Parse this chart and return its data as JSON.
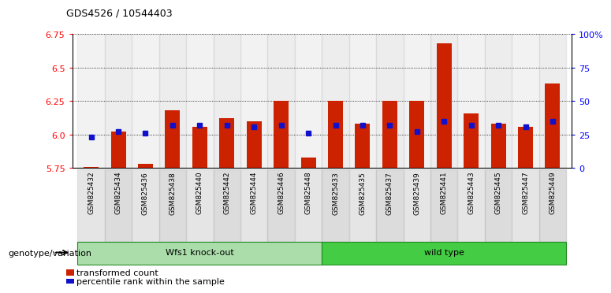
{
  "title": "GDS4526 / 10544403",
  "samples": [
    "GSM825432",
    "GSM825434",
    "GSM825436",
    "GSM825438",
    "GSM825440",
    "GSM825442",
    "GSM825444",
    "GSM825446",
    "GSM825448",
    "GSM825433",
    "GSM825435",
    "GSM825437",
    "GSM825439",
    "GSM825441",
    "GSM825443",
    "GSM825445",
    "GSM825447",
    "GSM825449"
  ],
  "bar_values": [
    5.76,
    6.02,
    5.78,
    6.18,
    6.06,
    6.12,
    6.1,
    6.25,
    5.83,
    6.25,
    6.08,
    6.25,
    6.25,
    6.68,
    6.16,
    6.08,
    6.06,
    6.38
  ],
  "percentile_values": [
    5.98,
    6.02,
    6.01,
    6.07,
    6.07,
    6.07,
    6.06,
    6.07,
    6.01,
    6.07,
    6.07,
    6.07,
    6.02,
    6.1,
    6.07,
    6.07,
    6.06,
    6.1
  ],
  "group_names": [
    "Wfs1 knock-out",
    "wild type"
  ],
  "group_split": 9,
  "ymin": 5.75,
  "ymax": 6.75,
  "yticks_left": [
    5.75,
    6.0,
    6.25,
    6.5,
    6.75
  ],
  "yticks_right_pct": [
    0,
    25,
    50,
    75,
    100
  ],
  "bar_color": "#cc2200",
  "dot_color": "#1111cc",
  "bar_width": 0.55,
  "legend_bar_label": "transformed count",
  "legend_dot_label": "percentile rank within the sample",
  "genotype_label": "genotype/variation",
  "group_color_1": "#aaddaa",
  "group_color_2": "#44cc44",
  "group_border_color": "#228822"
}
